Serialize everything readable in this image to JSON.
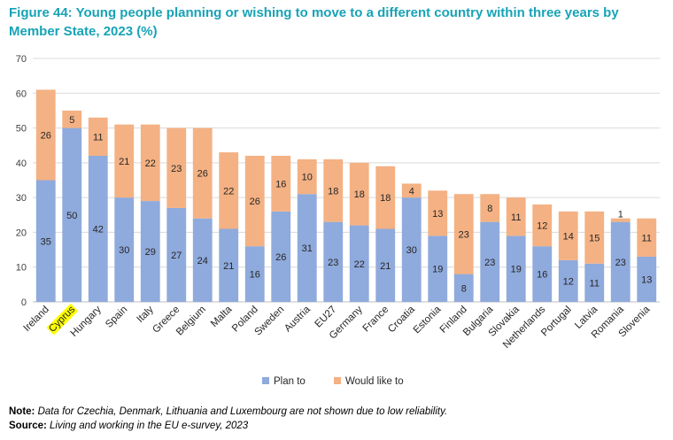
{
  "figure": {
    "title": "Figure 44: Young people planning or wishing to move to a different country within three years by Member State, 2023 (%)"
  },
  "chart_data": {
    "type": "bar",
    "stacked": true,
    "title": "Figure 44: Young people planning or wishing to move to a different country within three years by Member State, 2023 (%)",
    "xlabel": "",
    "ylabel": "",
    "ylim": [
      0,
      70
    ],
    "yticks": [
      0,
      10,
      20,
      30,
      40,
      50,
      60,
      70
    ],
    "grid": true,
    "legend_position": "bottom",
    "highlighted_category": "Cyprus",
    "highlight_color": "#ffff00",
    "categories": [
      "Ireland",
      "Cyprus",
      "Hungary",
      "Spain",
      "Italy",
      "Greece",
      "Belgium",
      "Malta",
      "Poland",
      "Sweden",
      "Austria",
      "EU27",
      "Germany",
      "France",
      "Croatia",
      "Estonia",
      "Finland",
      "Bulgaria",
      "Slovakia",
      "Netherlands",
      "Portugal",
      "Latvia",
      "Romania",
      "Slovenia"
    ],
    "series": [
      {
        "name": "Plan to",
        "color": "#8faadc",
        "values": [
          35,
          50,
          42,
          30,
          29,
          27,
          24,
          21,
          16,
          26,
          31,
          23,
          22,
          21,
          30,
          19,
          8,
          23,
          19,
          16,
          12,
          11,
          23,
          13
        ]
      },
      {
        "name": "Would like to",
        "color": "#f4b183",
        "values": [
          26,
          5,
          11,
          21,
          22,
          23,
          26,
          22,
          26,
          16,
          10,
          18,
          18,
          18,
          4,
          13,
          23,
          8,
          11,
          12,
          14,
          15,
          1,
          11
        ]
      }
    ]
  },
  "notes": {
    "note_label": "Note:",
    "note_text": "Data for Czechia, Denmark, Lithuania and Luxembourg are not shown due to low reliability.",
    "source_label": "Source:",
    "source_text": "Living and working in the EU e-survey, 2023"
  }
}
